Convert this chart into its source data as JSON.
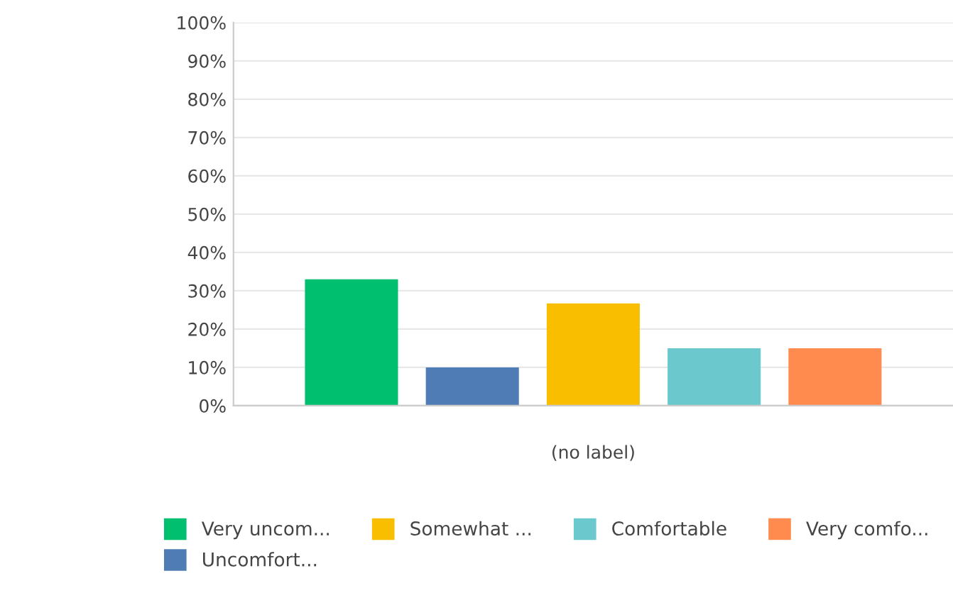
{
  "chart_data": {
    "type": "bar",
    "categories": [
      "(no label)"
    ],
    "series": [
      {
        "name": "Very uncom...",
        "color": "#00bf6f",
        "values": [
          33
        ]
      },
      {
        "name": "Uncomfort...",
        "color": "#507cb6",
        "values": [
          10
        ]
      },
      {
        "name": "Somewhat ...",
        "color": "#f9be00",
        "values": [
          26.7
        ]
      },
      {
        "name": "Comfortable",
        "color": "#6bc8cd",
        "values": [
          15
        ]
      },
      {
        "name": "Very comfo...",
        "color": "#ff8b4f",
        "values": [
          15
        ]
      }
    ],
    "ylim": [
      0,
      100
    ],
    "yticks": [
      {
        "value": 0,
        "label": "0%"
      },
      {
        "value": 10,
        "label": "10%"
      },
      {
        "value": 20,
        "label": "20%"
      },
      {
        "value": 30,
        "label": "30%"
      },
      {
        "value": 40,
        "label": "40%"
      },
      {
        "value": 50,
        "label": "50%"
      },
      {
        "value": 60,
        "label": "60%"
      },
      {
        "value": 70,
        "label": "70%"
      },
      {
        "value": 80,
        "label": "80%"
      },
      {
        "value": 90,
        "label": "90%"
      },
      {
        "value": 100,
        "label": "100%"
      }
    ],
    "grid": "y",
    "legend": "bottom"
  }
}
